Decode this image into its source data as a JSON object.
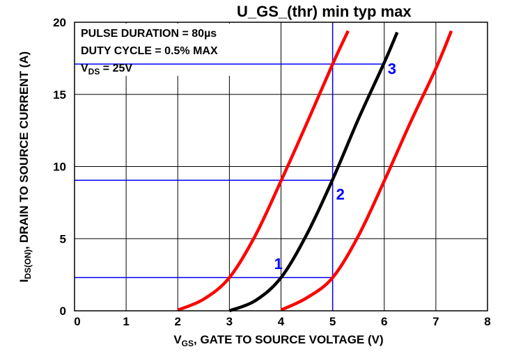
{
  "chart_data": {
    "type": "line",
    "title": "U_GS_(thr) min typ max",
    "xlabel": {
      "main": "V",
      "sub": "GS",
      "rest": ", GATE TO SOURCE VOLTAGE (V)"
    },
    "ylabel": {
      "main": "I",
      "sub": "DS(ON)",
      "rest": ", DRAIN TO SOURCE CURRENT (A)"
    },
    "xlim": [
      0,
      8
    ],
    "ylim": [
      0,
      20
    ],
    "x_ticks": [
      "0",
      "1",
      "2",
      "3",
      "4",
      "5",
      "6",
      "7",
      "8"
    ],
    "y_ticks": [
      "0",
      "5",
      "10",
      "15",
      "20"
    ],
    "grid": true,
    "notes": {
      "line1": "PULSE DURATION = 80µs",
      "line2": "DUTY CYCLE = 0.5% MAX",
      "line3": {
        "main": "V",
        "sub": "DS",
        "rest": " = 25V"
      }
    },
    "series": [
      {
        "color": "#ff0000",
        "x": [
          2.0,
          2.5,
          3.0,
          3.5,
          4.0,
          4.5,
          5.0,
          5.3
        ],
        "y": [
          0.05,
          0.8,
          2.3,
          5.2,
          9.0,
          13.0,
          17.1,
          19.4
        ]
      },
      {
        "color": "#000000",
        "x": [
          3.0,
          3.5,
          4.0,
          4.5,
          5.0,
          5.5,
          6.0,
          6.25
        ],
        "y": [
          0.0,
          0.7,
          2.3,
          5.3,
          9.1,
          13.3,
          17.2,
          19.3
        ]
      },
      {
        "color": "#ff0000",
        "x": [
          4.0,
          4.5,
          5.0,
          5.5,
          6.0,
          6.5,
          7.0,
          7.3
        ],
        "y": [
          0.05,
          0.9,
          2.3,
          5.2,
          9.0,
          13.0,
          16.8,
          19.4
        ]
      }
    ],
    "reference_lines": {
      "color": "#0000ff",
      "vertical_x": 5,
      "horizontal": [
        {
          "y": 2.3,
          "x_end": 5
        },
        {
          "y": 9.05,
          "x_end": 5
        },
        {
          "y": 17.1,
          "x_end": 6
        }
      ]
    },
    "markers": [
      {
        "label": "1",
        "x": 3.95,
        "y": 2.9,
        "color": "#0000ff"
      },
      {
        "label": "2",
        "x": 5.15,
        "y": 7.7,
        "color": "#0000ff"
      },
      {
        "label": "3",
        "x": 6.15,
        "y": 16.4,
        "color": "#0000ff"
      }
    ]
  }
}
